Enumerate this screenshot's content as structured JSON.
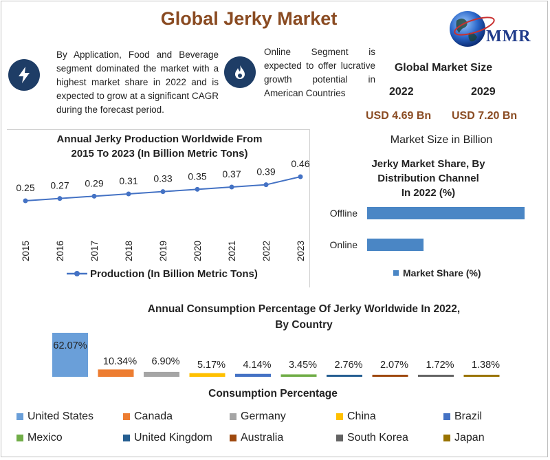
{
  "header": {
    "title": "Global Jerky Market"
  },
  "logo": {
    "text": "MMR",
    "icon": "globe-icon"
  },
  "info_left": {
    "icon": "lightning-icon",
    "text": "By Application, Food and Beverage segment dominated the market with a highest market share in 2022 and is expected to grow at a significant CAGR during the forecast period."
  },
  "info_mid": {
    "icon": "flame-icon",
    "text": "Online Segment is expected to offer lucrative growth potential in American Countries"
  },
  "market_size": {
    "title": "Global Market Size",
    "year1": "2022",
    "year2": "2029",
    "value1": "USD 4.69 Bn",
    "value2": "USD 7.20 Bn",
    "caption": "Market Size in Billion"
  },
  "colors": {
    "title": "#8a4b22",
    "accent": "#4472c4",
    "value": "#8a4b22",
    "icon_bg": "#1e3d66"
  },
  "chart_data": [
    {
      "type": "line",
      "title": "Annual Jerky Production Worldwide From 2015 To 2023 (In Billion Metric Tons)",
      "title_line1": "Annual Jerky Production Worldwide From",
      "title_line2": "2015 To 2023 (In Billion Metric Tons)",
      "x": [
        "2015",
        "2016",
        "2017",
        "2018",
        "2019",
        "2020",
        "2021",
        "2022",
        "2023"
      ],
      "series": [
        {
          "name": "Production (In Billion Metric Tons)",
          "values": [
            0.25,
            0.27,
            0.29,
            0.31,
            0.33,
            0.35,
            0.37,
            0.39,
            0.46
          ],
          "labels": [
            "0.25",
            "0.27",
            "0.29",
            "0.31",
            "0.33",
            "0.35",
            "0.37",
            "0.39",
            "0.46"
          ],
          "color": "#4472c4"
        }
      ],
      "legend": "bottom",
      "grid": false
    },
    {
      "type": "bar",
      "orientation": "horizontal",
      "title": "Jerky Market Share, By Distribution Channel In 2022 (%)",
      "title_lines": [
        "Jerky Market Share, By",
        "Distribution Channel",
        "In 2022 (%)"
      ],
      "categories": [
        "Offline",
        "Online"
      ],
      "series": [
        {
          "name": "Market Share (%)",
          "values": [
            67,
            24
          ],
          "color": "#4a86c5"
        }
      ],
      "xlim": [
        0,
        70
      ],
      "legend": "bottom",
      "grid": false
    },
    {
      "type": "bar",
      "title": "Annual Consumption Percentage Of Jerky Worldwide In 2022, By Country",
      "title_line1": "Annual Consumption Percentage Of Jerky Worldwide In 2022,",
      "title_line2": "By Country",
      "xlabel": "Consumption Percentage",
      "categories": [
        "United States",
        "Canada",
        "Germany",
        "China",
        "Brazil",
        "Mexico",
        "United Kingdom",
        "Australia",
        "South Korea",
        "Japan"
      ],
      "values": [
        62.07,
        10.34,
        6.9,
        5.17,
        4.14,
        3.45,
        2.76,
        2.07,
        1.72,
        1.38
      ],
      "labels": [
        "62.07%",
        "10.34%",
        "6.90%",
        "5.17%",
        "4.14%",
        "3.45%",
        "2.76%",
        "2.07%",
        "1.72%",
        "1.38%"
      ],
      "colors": [
        "#6a9fd9",
        "#ed7d31",
        "#a5a5a5",
        "#ffc000",
        "#4472c4",
        "#70ad47",
        "#255e91",
        "#9e480e",
        "#636363",
        "#997300"
      ],
      "ylim": [
        0,
        62.07
      ],
      "legend": "bottom",
      "grid": false
    }
  ]
}
